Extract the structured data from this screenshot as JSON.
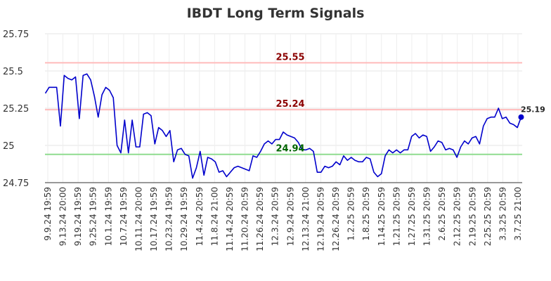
{
  "chart_data": {
    "type": "line",
    "title": "IBDT Long Term Signals",
    "xlabel": "",
    "ylabel": "",
    "ylim": [
      24.75,
      25.75
    ],
    "yticks": [
      "24.75",
      "25",
      "25.25",
      "25.5",
      "25.75"
    ],
    "grid": true,
    "line_color": "#0000cc",
    "x_tick_labels": [
      "9.9.24 19:59",
      "9.13.24 20:00",
      "9.19.24 19:59",
      "9.25.24 19:59",
      "10.1.24 19:59",
      "10.7.24 19:59",
      "10.11.24 20:00",
      "10.17.24 19:59",
      "10.23.24 19:59",
      "10.29.24 19:59",
      "11.4.24 20:59",
      "11.8.24 21:00",
      "11.14.24 20:59",
      "11.20.24 20:59",
      "11.26.24 20:59",
      "12.3.24 20:59",
      "12.9.24 20:59",
      "12.13.24 21:00",
      "12.19.24 20:59",
      "12.26.24 20:59",
      "1.2.25 20:59",
      "1.8.25 20:59",
      "1.14.25 20:59",
      "1.21.25 20:59",
      "1.27.25 20:59",
      "1.31.25 20:59",
      "2.6.25 20:59",
      "2.12.25 20:59",
      "2.19.25 20:59",
      "2.25.25 20:59",
      "3.3.25 20:59",
      "3.7.25 21:00"
    ],
    "series": [
      {
        "values": [
          25.35,
          25.39,
          25.39,
          25.39,
          25.13,
          25.47,
          25.45,
          25.44,
          25.46,
          25.18,
          25.47,
          25.48,
          25.44,
          25.33,
          25.19,
          25.34,
          25.39,
          25.37,
          25.32,
          25.0,
          24.95,
          25.17,
          24.95,
          25.17,
          24.99,
          24.99,
          25.21,
          25.22,
          25.2,
          25.01,
          25.12,
          25.1,
          25.06,
          25.1,
          24.89,
          24.97,
          24.98,
          24.94,
          24.93,
          24.78,
          24.85,
          24.96,
          24.8,
          24.92,
          24.91,
          24.89,
          24.82,
          24.83,
          24.79,
          24.82,
          24.85,
          24.86,
          24.85,
          24.84,
          24.83,
          24.93,
          24.92,
          24.96,
          25.01,
          25.03,
          25.01,
          25.04,
          25.04,
          25.09,
          25.07,
          25.06,
          25.05,
          25.02,
          24.97,
          24.97,
          24.98,
          24.96,
          24.82,
          24.82,
          24.86,
          24.85,
          24.86,
          24.89,
          24.87,
          24.93,
          24.9,
          24.92,
          24.9,
          24.89,
          24.89,
          24.92,
          24.91,
          24.82,
          24.79,
          24.81,
          24.93,
          24.97,
          24.95,
          24.97,
          24.95,
          24.97,
          24.97,
          25.06,
          25.08,
          25.05,
          25.07,
          25.06,
          24.96,
          24.99,
          25.03,
          25.02,
          24.97,
          24.98,
          24.97,
          24.92,
          24.99,
          25.03,
          25.01,
          25.05,
          25.06,
          25.01,
          25.13,
          25.18,
          25.19,
          25.19,
          25.25,
          25.18,
          25.19,
          25.15,
          25.14,
          25.12,
          25.19
        ]
      }
    ],
    "last_value_label": "25.19",
    "horizontal_lines": [
      {
        "label": "25.55",
        "value": 25.555,
        "line_color": "#ffbbbb",
        "label_color": "#8b0000"
      },
      {
        "label": "25.24",
        "value": 25.24,
        "line_color": "#ffbbbb",
        "label_color": "#8b0000"
      },
      {
        "label": "24.94",
        "value": 24.94,
        "line_color": "#8fdc8f",
        "label_color": "#006400"
      }
    ]
  }
}
